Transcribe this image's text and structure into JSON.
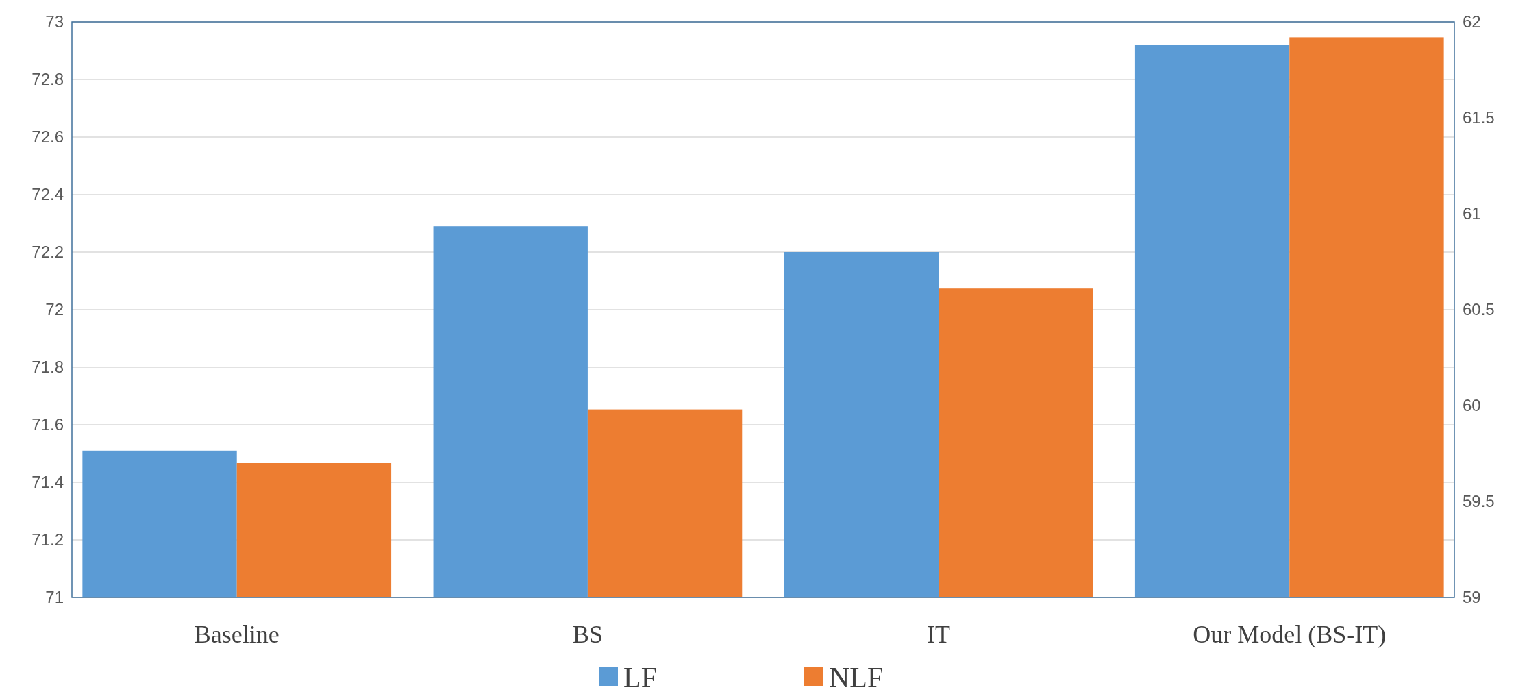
{
  "chart_data": {
    "type": "bar",
    "categories": [
      "Baseline",
      "BS",
      "IT",
      "Our Model (BS-IT)"
    ],
    "series": [
      {
        "name": "LF",
        "color": "#5b9bd5",
        "values": [
          71.51,
          72.29,
          72.2,
          72.92
        ]
      },
      {
        "name": "NLF",
        "color": "#ed7d31",
        "axis": "y2",
        "values": [
          59.7,
          59.98,
          60.61,
          61.92
        ]
      }
    ],
    "ylim": [
      71,
      73
    ],
    "yticks": [
      71,
      71.2,
      71.4,
      71.6,
      71.8,
      72,
      72.2,
      72.4,
      72.6,
      72.8,
      73
    ],
    "y2lim": [
      59,
      62
    ],
    "y2ticks": [
      59,
      59.5,
      60,
      60.5,
      61,
      61.5,
      62
    ],
    "grid": "y",
    "legend": "bottom"
  }
}
